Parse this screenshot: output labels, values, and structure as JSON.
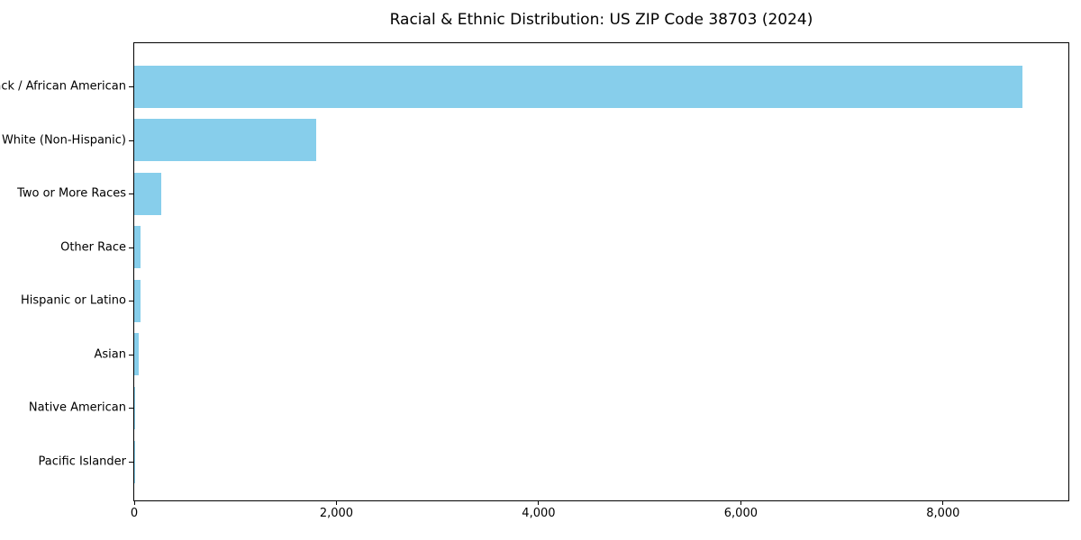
{
  "chart_data": {
    "type": "bar",
    "orientation": "horizontal",
    "title": "Racial & Ethnic Distribution: US ZIP Code 38703 (2024)",
    "categories": [
      "Black / African American",
      "White (Non-Hispanic)",
      "Two or More Races",
      "Other Race",
      "Hispanic or Latino",
      "Asian",
      "Native American",
      "Pacific Islander"
    ],
    "values": [
      8790,
      1800,
      265,
      62,
      60,
      44,
      9,
      2
    ],
    "xlabel": "",
    "ylabel": "",
    "xlim": [
      0,
      9240
    ],
    "xticks": [
      0,
      2000,
      4000,
      6000,
      8000
    ],
    "xtick_labels": [
      "0",
      "2,000",
      "4,000",
      "6,000",
      "8,000"
    ],
    "bar_color": "#87CEEB",
    "axis_color": "#000000",
    "background_color": "#ffffff",
    "grid": false,
    "legend": null
  }
}
